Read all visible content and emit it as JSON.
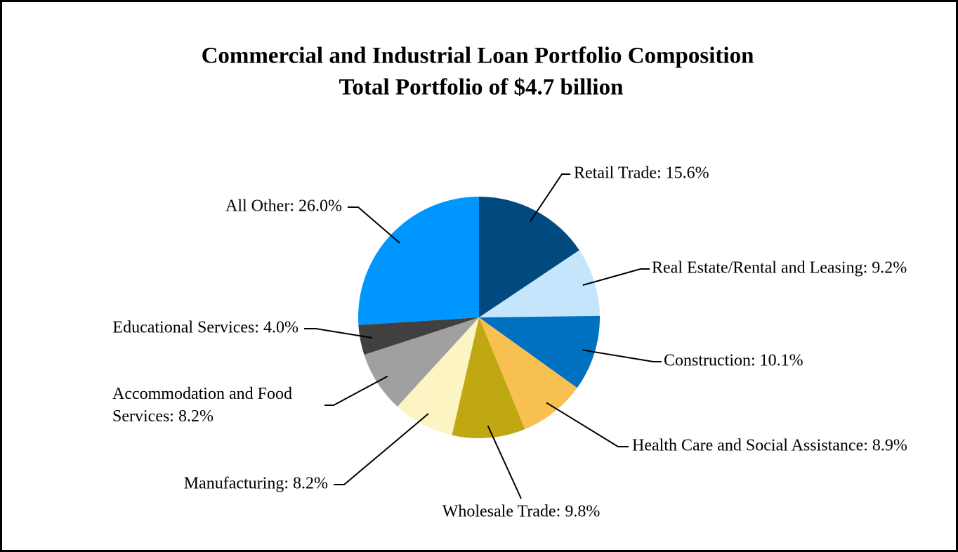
{
  "chart_data": {
    "type": "pie",
    "title": "Commercial and Industrial Loan Portfolio Composition",
    "subtitle": "Total Portfolio of $4.7 billion",
    "values": [
      15.6,
      9.2,
      10.1,
      8.9,
      9.8,
      8.2,
      8.2,
      4.0,
      26.0
    ],
    "value_labels": [
      "Retail Trade: 15.6%",
      "Real Estate/Rental and Leasing: 9.2%",
      "Construction: 10.1%",
      "Health Care and Social Assistance: 8.9%",
      "Wholesale Trade: 9.8%",
      "Manufacturing: 8.2%",
      "Accommodation and Food Services: 8.2%",
      "Educational Services: 4.0%",
      "All Other: 26.0%"
    ],
    "colors": [
      "#004a7f",
      "#c5e5fd",
      "#0070c0",
      "#f8c050",
      "#c0a812",
      "#fdf4c4",
      "#a0a0a0",
      "#404040",
      "#0096ff"
    ]
  }
}
